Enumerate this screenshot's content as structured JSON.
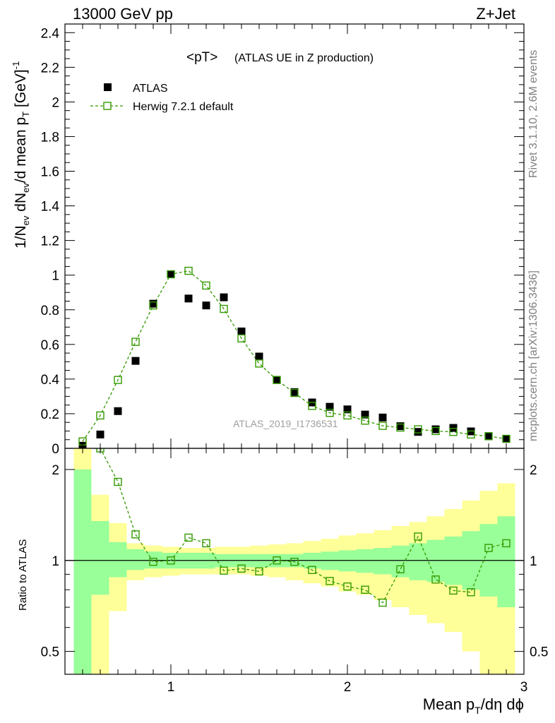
{
  "header": {
    "left": "13000 GeV pp",
    "right": "Z+Jet"
  },
  "side_labels": {
    "rivet": "Rivet 3.1.10,  2.6M events",
    "mcplots": "mcplots.cern.ch [arXiv:1306.3436]"
  },
  "chart_data": [
    {
      "type": "scatter",
      "title": "<pT>",
      "subtitle": "(ATLAS UE in Z production)",
      "watermark": "ATLAS_2019_I1736531",
      "ylabel": "1/N_ev dN_ev/d mean p_T [GeV]^-1",
      "xlabel": "Mean p_T/dη dϕ",
      "xlim": [
        0.4,
        3.0
      ],
      "ylim": [
        0,
        2.45
      ],
      "x_ticks": [
        "1",
        "2",
        "3"
      ],
      "y_ticks": [
        "0",
        "0.2",
        "0.4",
        "0.6",
        "0.8",
        "1",
        "1.2",
        "1.4",
        "1.6",
        "1.8",
        "2",
        "2.2",
        "2.4"
      ],
      "legend_position": "top-left",
      "series": [
        {
          "name": "ATLAS",
          "marker": "filled-square",
          "color": "#000000",
          "x": [
            0.5,
            0.6,
            0.7,
            0.8,
            0.9,
            1.0,
            1.1,
            1.2,
            1.3,
            1.4,
            1.5,
            1.6,
            1.7,
            1.8,
            1.9,
            2.0,
            2.1,
            2.2,
            2.3,
            2.4,
            2.5,
            2.6,
            2.7,
            2.8,
            2.9
          ],
          "y": [
            0.015,
            0.08,
            0.215,
            0.505,
            0.835,
            1.005,
            0.865,
            0.825,
            0.872,
            0.675,
            0.53,
            0.395,
            0.325,
            0.265,
            0.24,
            0.225,
            0.195,
            0.178,
            0.128,
            0.095,
            0.11,
            0.118,
            0.098,
            0.07,
            0.055
          ]
        },
        {
          "name": "Herwig 7.2.1 default",
          "marker": "open-square-dashed",
          "color": "#339900",
          "x": [
            0.5,
            0.6,
            0.7,
            0.8,
            0.9,
            1.0,
            1.1,
            1.2,
            1.3,
            1.4,
            1.5,
            1.6,
            1.7,
            1.8,
            1.9,
            2.0,
            2.1,
            2.2,
            2.3,
            2.4,
            2.5,
            2.6,
            2.7,
            2.8,
            2.9
          ],
          "y": [
            0.04,
            0.19,
            0.395,
            0.615,
            0.825,
            1.005,
            1.025,
            0.94,
            0.805,
            0.635,
            0.49,
            0.395,
            0.32,
            0.245,
            0.205,
            0.19,
            0.16,
            0.13,
            0.12,
            0.11,
            0.1,
            0.095,
            0.08,
            0.07,
            0.055
          ]
        }
      ]
    },
    {
      "type": "line",
      "ylabel": "Ratio to ATLAS",
      "xlabel": "Mean p_T/dη dϕ",
      "log_y": true,
      "xlim": [
        0.4,
        3.0
      ],
      "ylim": [
        0.42,
        2.35
      ],
      "y_ticks": [
        "0.5",
        "1",
        "2"
      ],
      "x_ticks": [
        "1",
        "2",
        "3"
      ],
      "reference_line": 1,
      "bin_edges": [
        0.45,
        0.55,
        0.65,
        0.75,
        0.85,
        0.95,
        1.05,
        1.15,
        1.25,
        1.35,
        1.45,
        1.55,
        1.65,
        1.75,
        1.85,
        1.95,
        2.05,
        2.15,
        2.25,
        2.35,
        2.45,
        2.55,
        2.65,
        2.75,
        2.85,
        2.95
      ],
      "band_stat": {
        "name": "stat",
        "color": "#99ff99",
        "low": [
          0.35,
          0.77,
          0.88,
          0.93,
          0.94,
          0.94,
          0.94,
          0.94,
          0.95,
          0.95,
          0.95,
          0.95,
          0.95,
          0.94,
          0.93,
          0.92,
          0.91,
          0.9,
          0.88,
          0.86,
          0.85,
          0.83,
          0.8,
          0.76,
          0.7
        ],
        "high": [
          2.0,
          1.35,
          1.15,
          1.09,
          1.07,
          1.06,
          1.06,
          1.06,
          1.05,
          1.05,
          1.05,
          1.05,
          1.05,
          1.06,
          1.07,
          1.08,
          1.09,
          1.1,
          1.12,
          1.14,
          1.17,
          1.2,
          1.25,
          1.32,
          1.4
        ]
      },
      "band_total": {
        "name": "syst",
        "color": "#ffff99",
        "low": [
          0.35,
          0.42,
          0.68,
          0.86,
          0.88,
          0.89,
          0.9,
          0.9,
          0.9,
          0.9,
          0.89,
          0.88,
          0.86,
          0.84,
          0.82,
          0.79,
          0.77,
          0.74,
          0.7,
          0.66,
          0.62,
          0.58,
          0.5,
          0.42,
          0.42
        ],
        "high": [
          2.4,
          1.65,
          1.33,
          1.14,
          1.12,
          1.11,
          1.1,
          1.1,
          1.11,
          1.11,
          1.12,
          1.13,
          1.14,
          1.16,
          1.18,
          1.21,
          1.23,
          1.26,
          1.3,
          1.34,
          1.4,
          1.48,
          1.58,
          1.7,
          1.8
        ]
      },
      "series": [
        {
          "name": "Herwig 7.2.1 default",
          "color": "#339900",
          "x": [
            0.5,
            0.6,
            0.7,
            0.8,
            0.9,
            1.0,
            1.1,
            1.2,
            1.3,
            1.4,
            1.5,
            1.6,
            1.7,
            1.8,
            1.9,
            2.0,
            2.1,
            2.2,
            2.3,
            2.4,
            2.5,
            2.6,
            2.7,
            2.8,
            2.9
          ],
          "y": [
            2.7,
            2.35,
            1.82,
            1.22,
            0.99,
            1.0,
            1.19,
            1.14,
            0.925,
            0.94,
            0.92,
            1.0,
            0.99,
            0.93,
            0.855,
            0.82,
            0.8,
            0.725,
            0.935,
            1.2,
            0.865,
            0.795,
            0.785,
            1.1,
            1.14
          ]
        }
      ]
    }
  ]
}
